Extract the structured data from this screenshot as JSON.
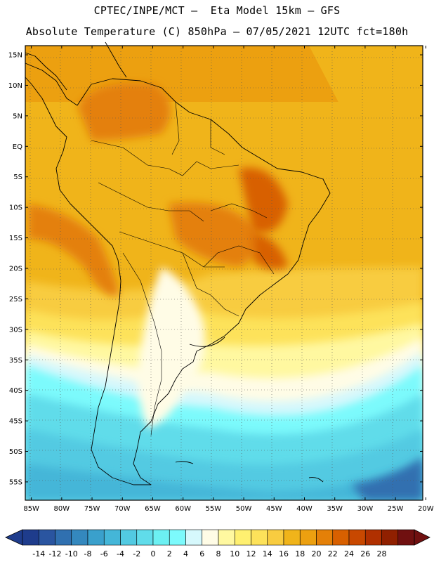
{
  "header": {
    "line1": "CPTEC/INPE/MCT –  Eta Model 15km – GFS",
    "line2": "Absolute Temperature (C) 850hPa – 07/05/2021 12UTC fct=180h"
  },
  "map": {
    "lat_labels": [
      "15N",
      "10N",
      "5N",
      "EQ",
      "5S",
      "10S",
      "15S",
      "20S",
      "25S",
      "30S",
      "35S",
      "40S",
      "45S",
      "50S",
      "55S"
    ],
    "lon_labels": [
      "85W",
      "80W",
      "75W",
      "70W",
      "65W",
      "60W",
      "55W",
      "50W",
      "45W",
      "40W",
      "35W",
      "30W",
      "25W",
      "20W"
    ],
    "lat_range": [
      -58,
      16.5
    ],
    "lon_range": [
      -86,
      -20.5
    ],
    "grid": "dotted"
  },
  "colorbar": {
    "labels": [
      "-14",
      "-12",
      "-10",
      "-8",
      "-6",
      "-4",
      "-2",
      "0",
      "2",
      "4",
      "6",
      "8",
      "10",
      "12",
      "14",
      "16",
      "18",
      "20",
      "22",
      "24",
      "26",
      "28"
    ],
    "colors": [
      "#1e3c8c",
      "#2a55a0",
      "#3070b0",
      "#3488be",
      "#3aa0cc",
      "#44b6d8",
      "#52cae2",
      "#60dcea",
      "#6cf0f2",
      "#7cfafc",
      "#d6f8fc",
      "#fffce6",
      "#fff8a0",
      "#fff070",
      "#fde25a",
      "#f8cc40",
      "#f0b41a",
      "#eca010",
      "#e48008",
      "#d86000",
      "#c84800",
      "#b03000",
      "#902000",
      "#701010"
    ]
  }
}
